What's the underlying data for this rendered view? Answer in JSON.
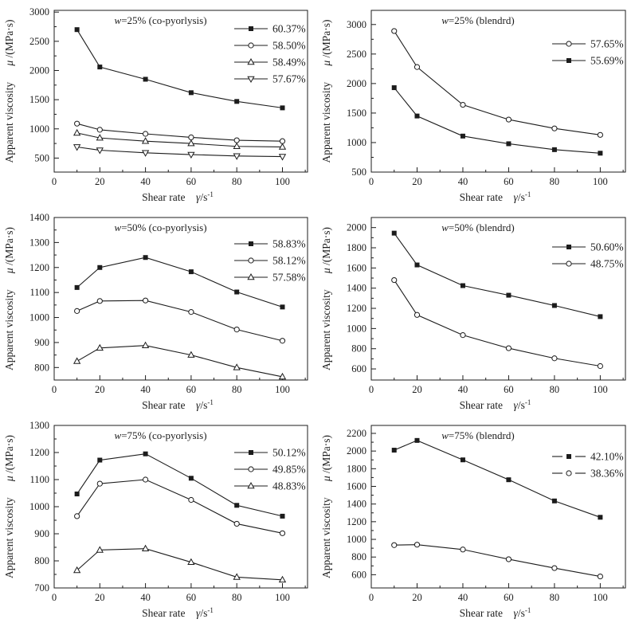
{
  "figure": {
    "background": "#ffffff",
    "ink_color": "#1c1c1c",
    "marker_open_fill": "#ffffff"
  },
  "axes_common": {
    "xlabel_text": "Shear rate",
    "xlabel_symbol_italic": "γ",
    "xlabel_symbol_rest": "/s",
    "xlabel_exponent": "-1",
    "ylabel_text": "Apparent viscosity",
    "ylabel_symbol_italic": "μ",
    "ylabel_symbol_rest": " /(MPa·s)",
    "x_values": [
      10,
      20,
      40,
      60,
      80,
      100
    ],
    "x_major_ticks": [
      0,
      20,
      40,
      60,
      80,
      100
    ],
    "x_minor_ticks": [
      10,
      30,
      50,
      70,
      90,
      110
    ],
    "xlim": [
      0,
      111
    ],
    "grid": "off",
    "legend_position": "upper right"
  },
  "chart_data": [
    {
      "type": "line",
      "position": "top-left",
      "title": "w=25% (co-pyorlysis)",
      "ylim": [
        260,
        3030
      ],
      "yticks": [
        500,
        1000,
        1500,
        2000,
        2500,
        3000
      ],
      "legend_dashed": false,
      "series": [
        {
          "name": "60.37%",
          "marker": "square-filled",
          "values": [
            2700,
            2060,
            1850,
            1620,
            1470,
            1360
          ]
        },
        {
          "name": "58.50%",
          "marker": "circle-open",
          "values": [
            1090,
            985,
            915,
            855,
            805,
            790
          ]
        },
        {
          "name": "58.49%",
          "marker": "triangle-up-open",
          "values": [
            930,
            845,
            790,
            750,
            700,
            690
          ]
        },
        {
          "name": "57.67%",
          "marker": "triangle-down-open",
          "values": [
            690,
            635,
            590,
            560,
            535,
            525
          ]
        }
      ]
    },
    {
      "type": "line",
      "position": "top-right",
      "title": "w=25% (blendrd)",
      "ylim": [
        500,
        3240
      ],
      "yticks": [
        500,
        1000,
        1500,
        2000,
        2500,
        3000
      ],
      "legend_dashed": false,
      "series": [
        {
          "name": "57.65%",
          "marker": "circle-open",
          "values": [
            2890,
            2280,
            1640,
            1390,
            1240,
            1130
          ]
        },
        {
          "name": "55.69%",
          "marker": "square-filled",
          "values": [
            1930,
            1450,
            1110,
            980,
            880,
            820
          ]
        }
      ]
    },
    {
      "type": "line",
      "position": "middle-left",
      "title": "w=50% (co-pyorlysis)",
      "ylim": [
        750,
        1400
      ],
      "yticks": [
        800,
        900,
        1000,
        1100,
        1200,
        1300,
        1400
      ],
      "legend_dashed": false,
      "series": [
        {
          "name": "58.83%",
          "marker": "square-filled",
          "values": [
            1120,
            1200,
            1240,
            1183,
            1102,
            1042
          ]
        },
        {
          "name": "58.12%",
          "marker": "circle-open",
          "values": [
            1026,
            1066,
            1068,
            1022,
            952,
            907
          ]
        },
        {
          "name": "57.58%",
          "marker": "triangle-up-open",
          "values": [
            825,
            878,
            888,
            850,
            800,
            763
          ]
        }
      ]
    },
    {
      "type": "line",
      "position": "middle-right",
      "title": "w=50% (blendrd)",
      "ylim": [
        490,
        2100
      ],
      "yticks": [
        600,
        800,
        1000,
        1200,
        1400,
        1600,
        1800,
        2000
      ],
      "legend_dashed": false,
      "series": [
        {
          "name": "50.60%",
          "marker": "square-filled",
          "values": [
            1945,
            1630,
            1425,
            1330,
            1228,
            1118
          ]
        },
        {
          "name": "48.75%",
          "marker": "circle-open",
          "values": [
            1480,
            1135,
            935,
            805,
            705,
            628
          ]
        }
      ]
    },
    {
      "type": "line",
      "position": "bottom-left",
      "title": "w=75% (co-pyorlysis)",
      "ylim": [
        700,
        1300
      ],
      "yticks": [
        700,
        800,
        900,
        1000,
        1100,
        1200,
        1300
      ],
      "legend_dashed": false,
      "series": [
        {
          "name": "50.12%",
          "marker": "square-filled",
          "values": [
            1047,
            1172,
            1195,
            1105,
            1005,
            965
          ]
        },
        {
          "name": "49.85%",
          "marker": "circle-open",
          "values": [
            965,
            1085,
            1100,
            1025,
            937,
            902
          ]
        },
        {
          "name": "48.83%",
          "marker": "triangle-up-open",
          "values": [
            765,
            840,
            845,
            795,
            740,
            730
          ]
        }
      ]
    },
    {
      "type": "line",
      "position": "bottom-right",
      "title": "w=75% (blendrd)",
      "ylim": [
        450,
        2290
      ],
      "yticks": [
        600,
        800,
        1000,
        1200,
        1400,
        1600,
        1800,
        2000,
        2200
      ],
      "legend_dashed": true,
      "series": [
        {
          "name": "42.10%",
          "marker": "square-filled",
          "values": [
            2010,
            2120,
            1900,
            1675,
            1435,
            1250
          ]
        },
        {
          "name": "38.36%",
          "marker": "circle-open",
          "values": [
            935,
            940,
            885,
            775,
            675,
            580
          ]
        }
      ]
    }
  ]
}
